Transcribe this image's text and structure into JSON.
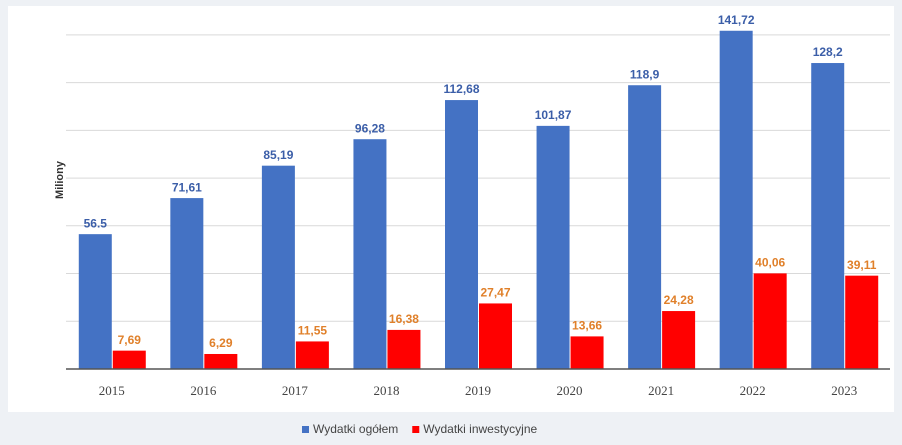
{
  "chart_data": {
    "type": "bar",
    "y_label": "Miliony",
    "categories": [
      "2015",
      "2016",
      "2017",
      "2018",
      "2019",
      "2020",
      "2021",
      "2022",
      "2023"
    ],
    "series": [
      {
        "name": "Wydatki ogółem",
        "color": "#4472c4",
        "label_color": "#3b5ea8",
        "values": [
          56.5,
          71.61,
          85.19,
          96.28,
          112.68,
          101.87,
          118.9,
          141.72,
          128.2
        ],
        "value_labels": [
          "56.5",
          "71,61",
          "85,19",
          "96,28",
          "112,68",
          "101,87",
          "118,9",
          "141,72",
          "128,2"
        ]
      },
      {
        "name": "Wydatki inwestycyjne",
        "color": "#ff0000",
        "label_color": "#e0802a",
        "values": [
          7.69,
          6.29,
          11.55,
          16.38,
          27.47,
          13.66,
          24.28,
          40.06,
          39.11
        ],
        "value_labels": [
          "7,69",
          "6,29",
          "11,55",
          "16,38",
          "27,47",
          "13,66",
          "24,28",
          "40,06",
          "39,11"
        ]
      }
    ],
    "ylim": [
      0,
      150
    ],
    "yticks": [
      0,
      20,
      40,
      60,
      80,
      100,
      120,
      140
    ],
    "grid": true,
    "legend": "bottom"
  }
}
